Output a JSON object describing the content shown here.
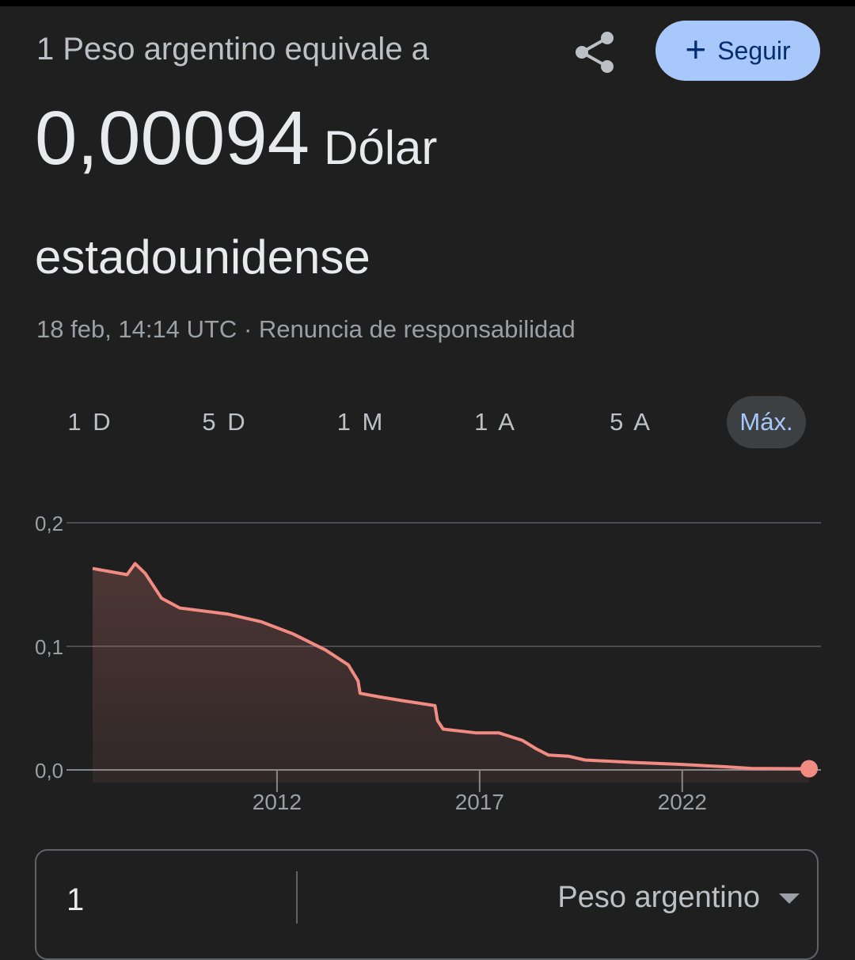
{
  "header": {
    "subtitle": "1 Peso argentino equivale a",
    "share_icon": "share-icon",
    "follow_label": "Seguir",
    "follow_icon": "plus-icon"
  },
  "rate": {
    "value": "0,00094",
    "currency_line1": "Dólar",
    "currency_line2": "estadounidense"
  },
  "meta": {
    "timestamp": "18 feb, 14:14 UTC",
    "separator": "·",
    "disclaimer": "Renuncia de responsabilidad"
  },
  "ranges": [
    {
      "label": "1 D",
      "active": false
    },
    {
      "label": "5 D",
      "active": false
    },
    {
      "label": "1 M",
      "active": false
    },
    {
      "label": "1 A",
      "active": false
    },
    {
      "label": "5 A",
      "active": false
    },
    {
      "label": "Máx.",
      "active": true
    }
  ],
  "chart_data": {
    "type": "area",
    "xlim": [
      2007.45,
      2025.13
    ],
    "ylim": [
      0,
      0.2
    ],
    "y_ticks": [
      {
        "value": 0,
        "label": "0,0"
      },
      {
        "value": 0.1,
        "label": "0,1"
      },
      {
        "value": 0.2,
        "label": "0,2"
      }
    ],
    "x_ticks": [
      {
        "value": 2012,
        "label": "2012"
      },
      {
        "value": 2017,
        "label": "2017"
      },
      {
        "value": 2022,
        "label": "2022"
      }
    ],
    "grid": true,
    "line_color": "#f28b82",
    "points": [
      [
        2007.45,
        0.163
      ],
      [
        2008.3,
        0.158
      ],
      [
        2008.5,
        0.167
      ],
      [
        2008.75,
        0.159
      ],
      [
        2009.15,
        0.139
      ],
      [
        2009.6,
        0.131
      ],
      [
        2010.8,
        0.126
      ],
      [
        2011.6,
        0.12
      ],
      [
        2012.4,
        0.11
      ],
      [
        2013.2,
        0.097
      ],
      [
        2013.76,
        0.085
      ],
      [
        2014.0,
        0.072
      ],
      [
        2014.05,
        0.062
      ],
      [
        2014.55,
        0.059
      ],
      [
        2015.1,
        0.056
      ],
      [
        2015.9,
        0.052
      ],
      [
        2015.96,
        0.04
      ],
      [
        2016.1,
        0.033
      ],
      [
        2016.9,
        0.03
      ],
      [
        2017.47,
        0.03
      ],
      [
        2018.05,
        0.024
      ],
      [
        2018.4,
        0.017
      ],
      [
        2018.7,
        0.012
      ],
      [
        2019.2,
        0.011
      ],
      [
        2019.6,
        0.008
      ],
      [
        2020.8,
        0.006
      ],
      [
        2021.95,
        0.0045
      ],
      [
        2023.1,
        0.0025
      ],
      [
        2023.7,
        0.0012
      ],
      [
        2025.13,
        0.00094
      ]
    ]
  },
  "converter": {
    "amount": "1",
    "currency": "Peso argentino"
  }
}
